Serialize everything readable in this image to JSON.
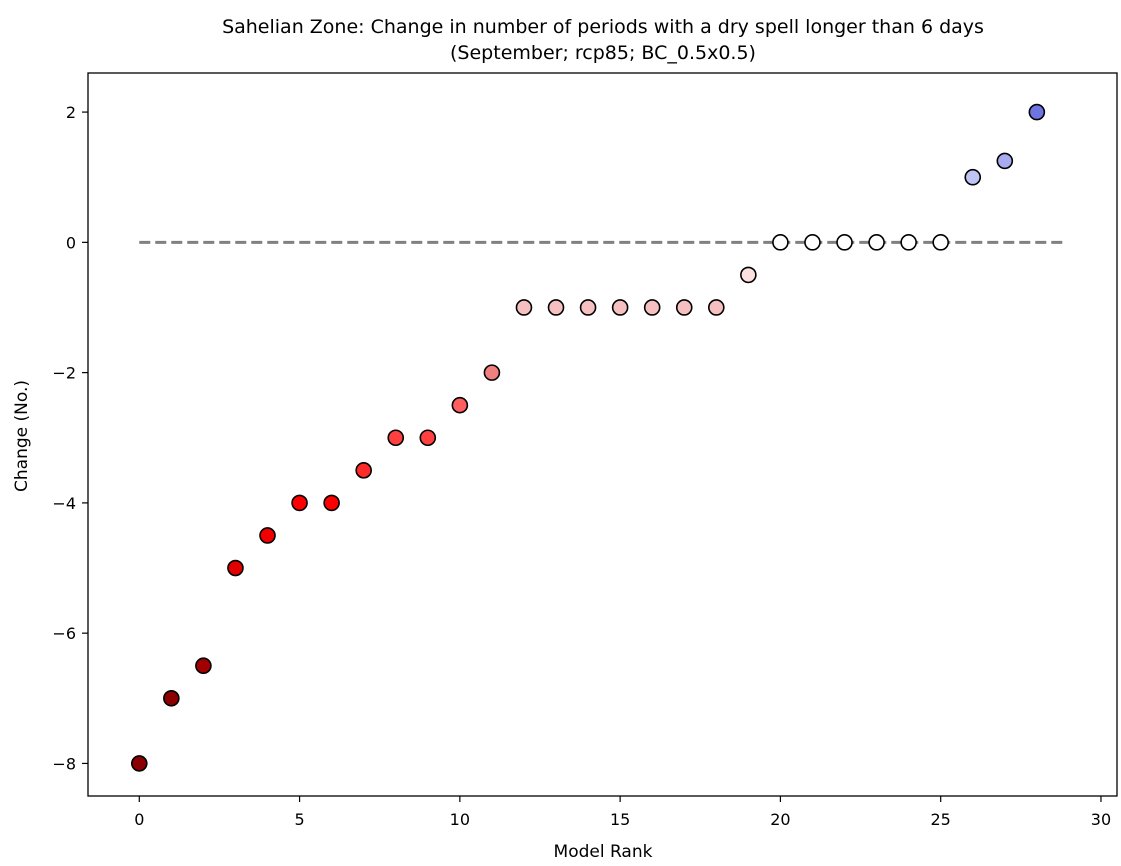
{
  "chart_data": {
    "type": "scatter",
    "title": "Sahelian Zone: Change in number of periods with a dry spell longer than 6 days",
    "subtitle": "(September; rcp85; BC_0.5x0.5)",
    "xlabel": "Model Rank",
    "ylabel": "Change (No.)",
    "xlim": [
      -1.6,
      30.5
    ],
    "ylim": [
      -8.5,
      2.6
    ],
    "xticks": [
      0,
      5,
      10,
      15,
      20,
      25,
      30
    ],
    "yticks": [
      -8,
      -6,
      -4,
      -2,
      0,
      2
    ],
    "grid": false,
    "legend": "none",
    "reference_line": {
      "y": 0,
      "x_range": [
        0,
        28.8
      ],
      "style": "dashed",
      "color": "#808080"
    },
    "points": [
      {
        "x": 0,
        "y": -8,
        "color": "#8b0000"
      },
      {
        "x": 1,
        "y": -7,
        "color": "#8b0000"
      },
      {
        "x": 2,
        "y": -6.5,
        "color": "#a00000"
      },
      {
        "x": 3,
        "y": -5,
        "color": "#e00000"
      },
      {
        "x": 4,
        "y": -4.5,
        "color": "#f00000"
      },
      {
        "x": 5,
        "y": -4,
        "color": "#ff0000"
      },
      {
        "x": 6,
        "y": -4,
        "color": "#ff0000"
      },
      {
        "x": 7,
        "y": -3.5,
        "color": "#ff2a2a"
      },
      {
        "x": 8,
        "y": -3,
        "color": "#ff4040"
      },
      {
        "x": 9,
        "y": -3,
        "color": "#ff4040"
      },
      {
        "x": 10,
        "y": -2.5,
        "color": "#ff5f5f"
      },
      {
        "x": 11,
        "y": -2,
        "color": "#f08080"
      },
      {
        "x": 12,
        "y": -1,
        "color": "#f7c0c0"
      },
      {
        "x": 13,
        "y": -1,
        "color": "#f7c0c0"
      },
      {
        "x": 14,
        "y": -1,
        "color": "#f7c0c0"
      },
      {
        "x": 15,
        "y": -1,
        "color": "#f7c0c0"
      },
      {
        "x": 16,
        "y": -1,
        "color": "#f7c0c0"
      },
      {
        "x": 17,
        "y": -1,
        "color": "#f7c0c0"
      },
      {
        "x": 18,
        "y": -1,
        "color": "#f7c0c0"
      },
      {
        "x": 19,
        "y": -0.5,
        "color": "#fde0e0"
      },
      {
        "x": 20,
        "y": 0,
        "color": "#ffffff"
      },
      {
        "x": 21,
        "y": 0,
        "color": "#ffffff"
      },
      {
        "x": 22,
        "y": 0,
        "color": "#ffffff"
      },
      {
        "x": 23,
        "y": 0,
        "color": "#ffffff"
      },
      {
        "x": 24,
        "y": 0,
        "color": "#ffffff"
      },
      {
        "x": 25,
        "y": 0,
        "color": "#ffffff"
      },
      {
        "x": 26,
        "y": 1,
        "color": "#c0c4f5"
      },
      {
        "x": 27,
        "y": 1.25,
        "color": "#a8acef"
      },
      {
        "x": 28,
        "y": 2,
        "color": "#6f75e0"
      }
    ]
  }
}
